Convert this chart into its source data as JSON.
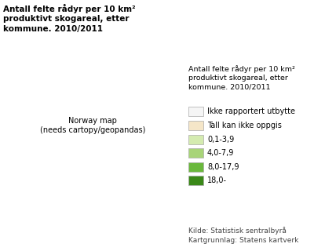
{
  "title_top_left": "Antall felte rådyr per 10 km²\nproduktivt skogareal, etter\nkommune. 2010/2011",
  "legend_title": "Antall felte rådyr per 10 km²\nproduktivt skogareal, etter\nkommune. 2010/2011",
  "legend_labels": [
    "Ikke rapportert utbytte",
    "Tall kan ikke oppgis",
    "0,1-3,9",
    "4,0-7,9",
    "8,0-17,9",
    "18,0-"
  ],
  "legend_colors": [
    "#f5f5f5",
    "#f5e6c8",
    "#d4ebb0",
    "#a8d478",
    "#6ab83c",
    "#3a8818"
  ],
  "source_text": "Kilde: Statistisk sentralbyrå\nKartgrunnlag: Statens kartverk",
  "background_color": "#ffffff",
  "map_xlim": [
    3.5,
    31.5
  ],
  "map_ylim": [
    57.5,
    71.5
  ],
  "title_fontsize": 7.5,
  "legend_title_fontsize": 6.8,
  "legend_fontsize": 7,
  "source_fontsize": 6.5
}
